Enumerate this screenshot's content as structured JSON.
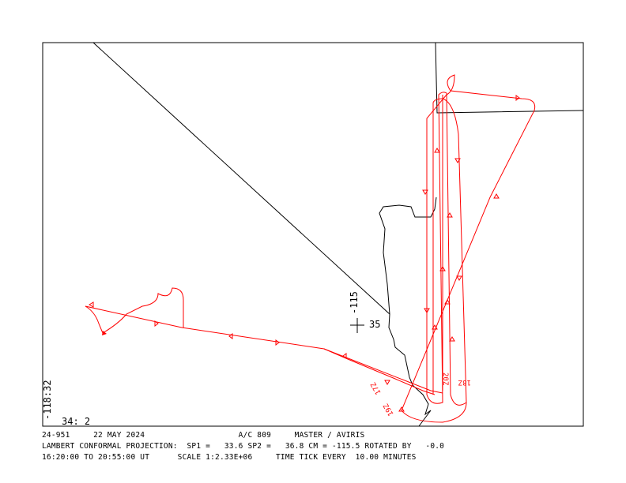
{
  "map": {
    "axis_labels": {
      "lon_left": "-118:32",
      "lat_bottom": "34: 2"
    },
    "grid_cross": {
      "lon": "-115",
      "lat": "35"
    },
    "time_labels": [
      "17Z",
      "18Z",
      "19Z",
      "20Z"
    ],
    "colors": {
      "track": "#ff0000",
      "boundaries": "#000000"
    }
  },
  "footer": {
    "line1": "24-951     22 MAY 2024                    A/C 809     MASTER / AVIRIS",
    "line2": "LAMBERT CONFORMAL PROJECTION:  SP1 =   33.6 SP2 =   36.8 CM = -115.5 ROTATED BY   -0.0",
    "line3": "16:20:00 TO 20:55:00 UT      SCALE 1:2.33E+06     TIME TICK EVERY  10.00 MINUTES"
  }
}
